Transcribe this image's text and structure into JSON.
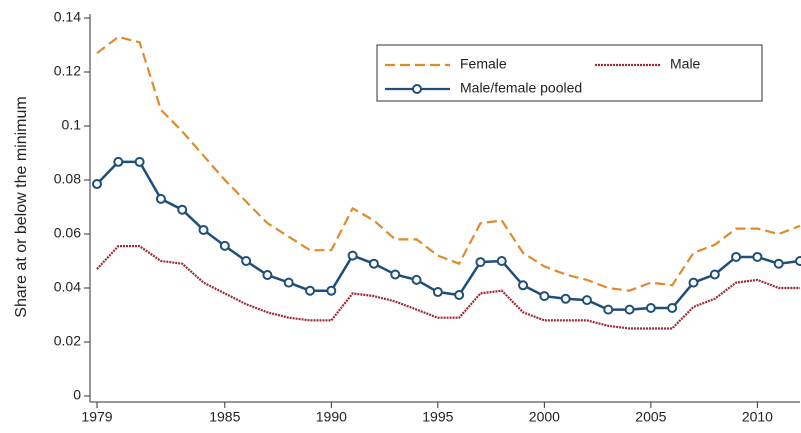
{
  "chart_data": {
    "type": "line",
    "y_label": "Share at or below the minimum",
    "x": [
      1979,
      1980,
      1981,
      1982,
      1983,
      1984,
      1985,
      1986,
      1987,
      1988,
      1989,
      1990,
      1991,
      1992,
      1993,
      1994,
      1995,
      1996,
      1997,
      1998,
      1999,
      2000,
      2001,
      2002,
      2003,
      2004,
      2005,
      2006,
      2007,
      2008,
      2009,
      2010,
      2011,
      2012
    ],
    "series": [
      {
        "name": "Female",
        "color": "#e08a2c",
        "dash": "dashed",
        "values": [
          0.127,
          0.133,
          0.131,
          0.106,
          0.098,
          0.089,
          0.08,
          0.072,
          0.064,
          0.059,
          0.054,
          0.054,
          0.0695,
          0.065,
          0.058,
          0.058,
          0.052,
          0.049,
          0.064,
          0.065,
          0.053,
          0.048,
          0.045,
          0.043,
          0.04,
          0.039,
          0.042,
          0.041,
          0.053,
          0.056,
          0.062,
          0.062,
          0.06,
          0.063
        ]
      },
      {
        "name": "Male",
        "color": "#9b2a35",
        "dash": "dotted",
        "values": [
          0.047,
          0.0555,
          0.0555,
          0.05,
          0.049,
          0.042,
          0.038,
          0.034,
          0.031,
          0.029,
          0.028,
          0.028,
          0.038,
          0.037,
          0.035,
          0.032,
          0.029,
          0.029,
          0.038,
          0.039,
          0.031,
          0.028,
          0.028,
          0.028,
          0.026,
          0.025,
          0.025,
          0.025,
          0.033,
          0.036,
          0.042,
          0.043,
          0.04,
          0.04
        ]
      },
      {
        "name": "Male/female pooled",
        "color": "#1f4e79",
        "dash": "solid",
        "markers": true,
        "values": [
          0.0785,
          0.0867,
          0.0867,
          0.073,
          0.069,
          0.0615,
          0.0556,
          0.05,
          0.0448,
          0.042,
          0.039,
          0.039,
          0.052,
          0.049,
          0.045,
          0.043,
          0.0385,
          0.0374,
          0.0496,
          0.05,
          0.041,
          0.037,
          0.036,
          0.0355,
          0.032,
          0.032,
          0.0326,
          0.0326,
          0.042,
          0.045,
          0.0515,
          0.0515,
          0.049,
          0.05
        ]
      }
    ],
    "xlim": [
      1979,
      2012
    ],
    "xticks": [
      1979,
      1985,
      1990,
      1995,
      2000,
      2005,
      2010
    ],
    "ylim": [
      0,
      0.14
    ],
    "yticks": [
      0,
      0.02,
      0.04,
      0.06,
      0.08,
      0.1,
      0.12,
      0.14
    ]
  }
}
